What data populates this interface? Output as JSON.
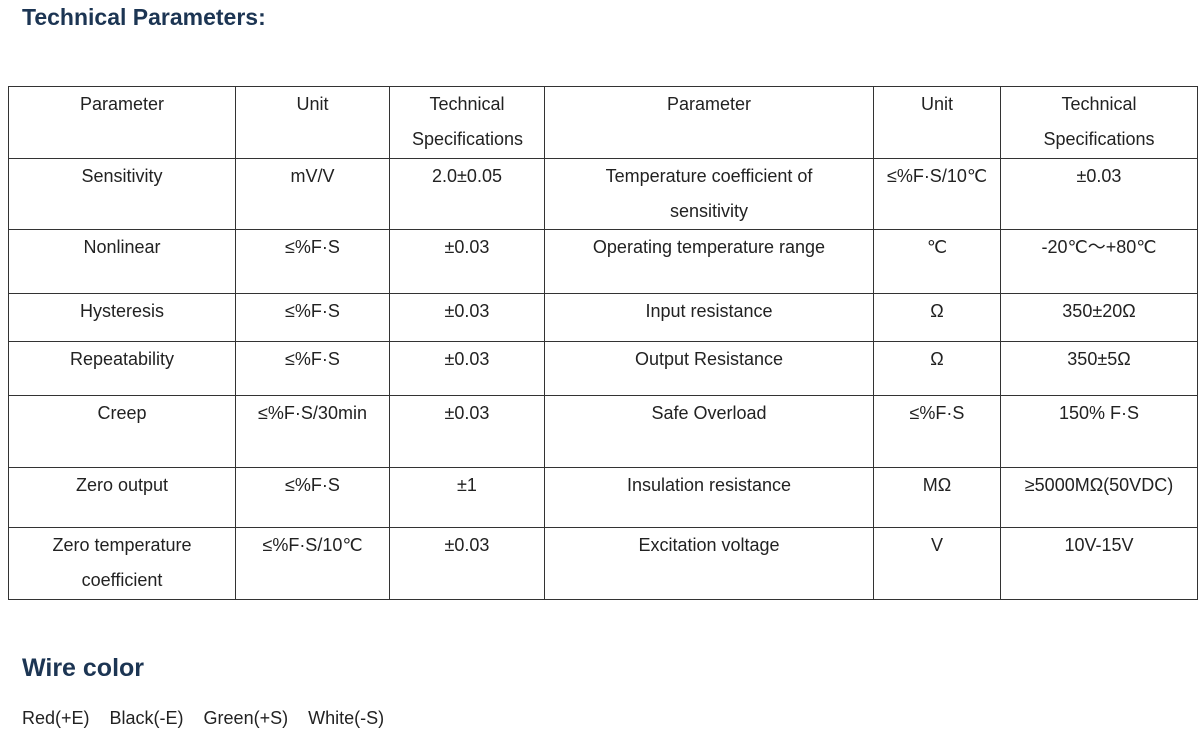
{
  "title": "Technical Parameters:",
  "table": {
    "header": [
      "Parameter",
      "Unit",
      "Technical Specifications",
      "Parameter",
      "Unit",
      "Technical Specifications"
    ],
    "rows": [
      [
        "Sensitivity",
        "mV/V",
        "2.0±0.05",
        "Temperature coefficient of sensitivity",
        "≤%F·S/10℃",
        "±0.03"
      ],
      [
        "Nonlinear",
        "≤%F·S",
        "±0.03",
        "Operating temperature range",
        "℃",
        "-20℃～+80℃"
      ],
      [
        "Hysteresis",
        "≤%F·S",
        "±0.03",
        "Input resistance",
        "Ω",
        "350±20Ω"
      ],
      [
        "Repeatability",
        "≤%F·S",
        "±0.03",
        "Output Resistance",
        "Ω",
        "350±5Ω"
      ],
      [
        "Creep",
        "≤%F·S/30min",
        "±0.03",
        "Safe Overload",
        "≤%F·S",
        "150% F·S"
      ],
      [
        "Zero output",
        "≤%F·S",
        "±1",
        "Insulation resistance",
        "MΩ",
        "≥5000MΩ(50VDC)"
      ],
      [
        "Zero temperature coefficient",
        "≤%F·S/10℃",
        "±0.03",
        "Excitation voltage",
        "V",
        "10V-15V"
      ]
    ]
  },
  "wire_color": {
    "title": "Wire color",
    "items": [
      "Red(+E)",
      "Black(-E)",
      "Green(+S)",
      "White(-S)"
    ]
  }
}
